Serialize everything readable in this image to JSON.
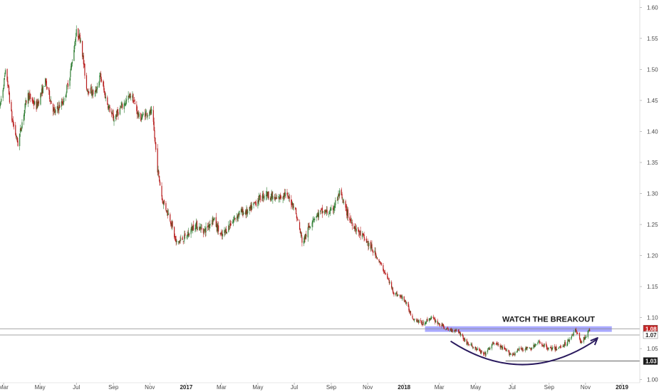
{
  "chart_data": {
    "type": "candlestick",
    "title": "",
    "xlabel": "",
    "ylabel": "",
    "ylim": [
      0.995,
      1.605
    ],
    "y_axis_position": "right",
    "grid": false,
    "y_ticks": [
      "1.60",
      "1.55",
      "1.50",
      "1.45",
      "1.40",
      "1.35",
      "1.30",
      "1.25",
      "1.20",
      "1.15",
      "1.10",
      "1.05",
      "1.00"
    ],
    "x_ticks": [
      {
        "label": "Mar",
        "bold": false
      },
      {
        "label": "May",
        "bold": false
      },
      {
        "label": "Jul",
        "bold": false
      },
      {
        "label": "Sep",
        "bold": false
      },
      {
        "label": "Nov",
        "bold": false
      },
      {
        "label": "2017",
        "bold": true
      },
      {
        "label": "Mar",
        "bold": false
      },
      {
        "label": "May",
        "bold": false
      },
      {
        "label": "Jul",
        "bold": false
      },
      {
        "label": "Sep",
        "bold": false
      },
      {
        "label": "Nov",
        "bold": false
      },
      {
        "label": "2018",
        "bold": true
      },
      {
        "label": "Mar",
        "bold": false
      },
      {
        "label": "May",
        "bold": false
      },
      {
        "label": "Jul",
        "bold": false
      },
      {
        "label": "Sep",
        "bold": false
      },
      {
        "label": "Nov",
        "bold": false
      },
      {
        "label": "2019",
        "bold": true
      }
    ],
    "price_path": [
      [
        "2016-02-24",
        1.44
      ],
      [
        "2016-03-05",
        1.5
      ],
      [
        "2016-03-15",
        1.42
      ],
      [
        "2016-03-25",
        1.38
      ],
      [
        "2016-04-10",
        1.46
      ],
      [
        "2016-04-25",
        1.44
      ],
      [
        "2016-05-10",
        1.48
      ],
      [
        "2016-05-25",
        1.43
      ],
      [
        "2016-06-10",
        1.45
      ],
      [
        "2016-06-20",
        1.49
      ],
      [
        "2016-07-01",
        1.56
      ],
      [
        "2016-07-08",
        1.55
      ],
      [
        "2016-07-18",
        1.47
      ],
      [
        "2016-08-01",
        1.46
      ],
      [
        "2016-08-10",
        1.49
      ],
      [
        "2016-08-20",
        1.45
      ],
      [
        "2016-09-01",
        1.42
      ],
      [
        "2016-09-15",
        1.44
      ],
      [
        "2016-10-01",
        1.46
      ],
      [
        "2016-10-15",
        1.42
      ],
      [
        "2016-10-25",
        1.43
      ],
      [
        "2016-11-05",
        1.43
      ],
      [
        "2016-11-10",
        1.38
      ],
      [
        "2016-11-14",
        1.34
      ],
      [
        "2016-11-22",
        1.29
      ],
      [
        "2016-12-05",
        1.26
      ],
      [
        "2016-12-15",
        1.22
      ],
      [
        "2017-01-01",
        1.23
      ],
      [
        "2017-01-15",
        1.25
      ],
      [
        "2017-02-01",
        1.24
      ],
      [
        "2017-02-15",
        1.26
      ],
      [
        "2017-03-01",
        1.23
      ],
      [
        "2017-03-15",
        1.25
      ],
      [
        "2017-04-01",
        1.27
      ],
      [
        "2017-04-15",
        1.27
      ],
      [
        "2017-05-01",
        1.29
      ],
      [
        "2017-05-15",
        1.3
      ],
      [
        "2017-06-01",
        1.29
      ],
      [
        "2017-06-15",
        1.3
      ],
      [
        "2017-07-01",
        1.28
      ],
      [
        "2017-07-08",
        1.25
      ],
      [
        "2017-07-15",
        1.22
      ],
      [
        "2017-08-01",
        1.26
      ],
      [
        "2017-08-15",
        1.27
      ],
      [
        "2017-09-01",
        1.27
      ],
      [
        "2017-09-15",
        1.3
      ],
      [
        "2017-10-01",
        1.26
      ],
      [
        "2017-10-15",
        1.24
      ],
      [
        "2017-11-01",
        1.22
      ],
      [
        "2017-11-15",
        1.2
      ],
      [
        "2017-12-01",
        1.17
      ],
      [
        "2017-12-15",
        1.14
      ],
      [
        "2018-01-01",
        1.13
      ],
      [
        "2018-01-15",
        1.1
      ],
      [
        "2018-02-01",
        1.09
      ],
      [
        "2018-02-15",
        1.1
      ],
      [
        "2018-03-01",
        1.09
      ],
      [
        "2018-03-15",
        1.08
      ],
      [
        "2018-04-01",
        1.08
      ],
      [
        "2018-04-15",
        1.06
      ],
      [
        "2018-05-01",
        1.05
      ],
      [
        "2018-05-15",
        1.04
      ],
      [
        "2018-06-01",
        1.06
      ],
      [
        "2018-06-15",
        1.05
      ],
      [
        "2018-07-01",
        1.04
      ],
      [
        "2018-07-15",
        1.05
      ],
      [
        "2018-08-01",
        1.05
      ],
      [
        "2018-08-15",
        1.06
      ],
      [
        "2018-09-01",
        1.05
      ],
      [
        "2018-09-15",
        1.05
      ],
      [
        "2018-10-01",
        1.06
      ],
      [
        "2018-10-15",
        1.08
      ],
      [
        "2018-10-25",
        1.06
      ],
      [
        "2018-11-01",
        1.07
      ],
      [
        "2018-11-08",
        1.08
      ]
    ],
    "colors": {
      "up": "#2e7d32",
      "down": "#b71c1c",
      "axis_text": "#4a4a4a",
      "annotation": "#2a1a5e",
      "zone": "#7b7bff"
    },
    "annotations": {
      "text": "WATCH THE BREAKOUT",
      "resistance_zone": [
        1.077,
        1.086
      ],
      "support_line": 1.03,
      "support_start": "2018-06-20",
      "arc_start": "2018-03-20",
      "arc_end": "2018-11-20"
    },
    "price_badges": [
      {
        "label": "1.08",
        "value": 1.082,
        "bg": "#c62828",
        "fg": "#ffffff"
      },
      {
        "label": "1.07",
        "value": 1.072,
        "bg": "#ffffff",
        "fg": "#222222"
      },
      {
        "label": "1.03",
        "value": 1.03,
        "bg": "#1a1a1a",
        "fg": "#ffffff"
      }
    ]
  }
}
